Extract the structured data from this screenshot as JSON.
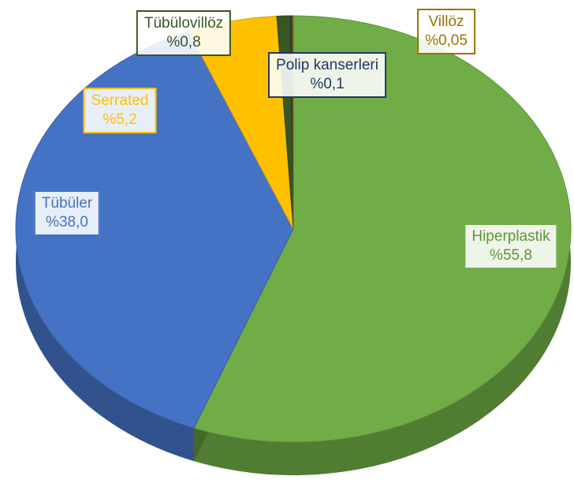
{
  "chart_data": {
    "type": "pie",
    "categories": [
      "Hiperplastik",
      "Tübüler",
      "Serrated",
      "Tübülovillöz",
      "Polip kanserleri",
      "Villöz"
    ],
    "values": [
      55.8,
      38.0,
      5.2,
      0.8,
      0.1,
      0.05
    ],
    "value_labels": [
      "%55,8",
      "%38,0",
      "%5,2",
      "%0,8",
      "%0,1",
      "%0,05"
    ],
    "colors": [
      "#70ad47",
      "#4472c4",
      "#ffc000",
      "#375623",
      "#203864",
      "#997300"
    ]
  }
}
